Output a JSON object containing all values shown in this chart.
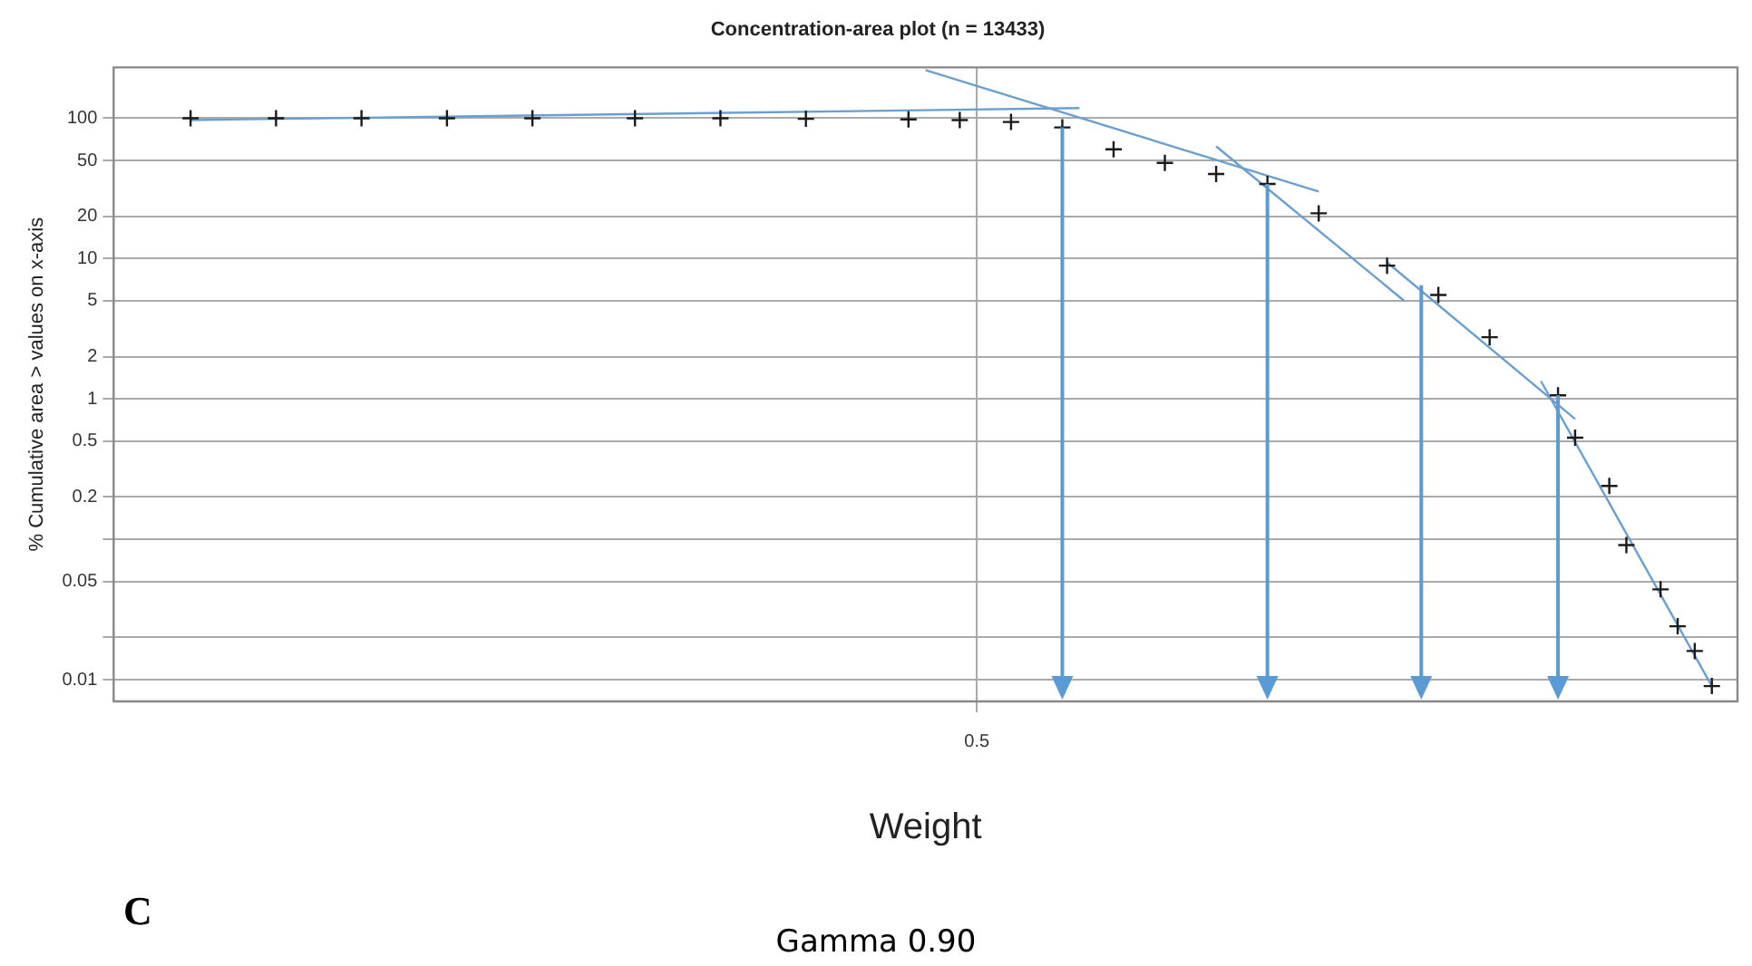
{
  "chart_data": {
    "type": "scatter",
    "title": "Concentration-area plot (n = 13433)",
    "xlabel": "Weight",
    "ylabel": "% Cumulative area > values on x-axis",
    "annotations": [
      "C",
      "Gamma 0.90"
    ],
    "log": "y",
    "grid": true,
    "marker": "cross",
    "legend": false,
    "categories": [
      null,
      null,
      null,
      null,
      null,
      null,
      null,
      null,
      null,
      null,
      null,
      null,
      null,
      null,
      null,
      null,
      null,
      null,
      null,
      null,
      null,
      null,
      null,
      null,
      null,
      null,
      null,
      null,
      null,
      null,
      null,
      null,
      null,
      null,
      null,
      null,
      null,
      null,
      null,
      null,
      null,
      null,
      null,
      null,
      null,
      null,
      null,
      null,
      null,
      null,
      "0.5",
      null,
      null,
      null,
      null,
      null,
      null,
      null,
      null,
      null,
      null,
      null,
      null,
      null,
      null,
      null,
      null,
      null,
      null,
      null,
      null,
      null,
      null,
      null,
      null,
      null,
      null,
      null,
      null,
      null,
      null,
      null,
      null,
      null,
      null,
      null,
      null,
      null,
      null,
      null,
      null,
      null,
      null,
      null,
      null
    ],
    "ylim": [
      0.007,
      230
    ],
    "yticks": [
      100,
      50,
      20,
      10,
      5,
      2,
      1,
      0.5,
      0.2,
      {
        "value": 0.1,
        "label": null
      },
      0.05,
      {
        "value": 0.02,
        "label": null
      },
      0.01
    ],
    "series": [
      {
        "color": "#1a1a1a",
        "values": [
          null,
          null,
          null,
          null,
          100,
          null,
          null,
          null,
          null,
          100,
          null,
          null,
          null,
          null,
          100,
          null,
          null,
          null,
          null,
          100,
          null,
          null,
          null,
          null,
          100,
          null,
          null,
          null,
          null,
          null,
          100,
          null,
          null,
          null,
          null,
          100,
          null,
          null,
          null,
          null,
          99,
          null,
          null,
          null,
          null,
          null,
          98,
          null,
          null,
          97,
          null,
          null,
          94,
          null,
          null,
          86,
          null,
          null,
          60,
          null,
          null,
          48,
          null,
          null,
          40,
          null,
          null,
          34,
          null,
          null,
          21,
          null,
          null,
          null,
          8.9,
          null,
          null,
          5.5,
          null,
          null,
          2.75,
          null,
          null,
          null,
          1.06,
          0.53,
          null,
          0.24,
          0.091,
          null,
          0.044,
          0.024,
          0.016,
          0.009,
          null
        ]
      },
      {
        "type": "line",
        "marker": "none",
        "color": "#6a9fd0",
        "values": [
          null,
          null,
          null,
          null,
          97,
          null,
          null,
          null,
          null,
          null,
          null,
          null,
          null,
          null,
          null,
          null,
          null,
          null,
          null,
          null,
          null,
          null,
          null,
          null,
          null,
          null,
          null,
          null,
          null,
          null,
          null,
          null,
          null,
          null,
          null,
          null,
          null,
          null,
          null,
          null,
          null,
          null,
          null,
          null,
          null,
          null,
          null,
          null,
          null,
          null,
          null,
          null,
          null,
          null,
          null,
          null,
          118,
          null,
          null,
          null,
          null,
          null,
          null,
          null,
          null,
          null,
          null,
          null,
          null,
          null,
          null,
          null,
          null,
          null,
          null,
          null,
          null,
          null,
          null,
          null,
          null,
          null,
          null,
          null,
          null,
          null,
          null,
          null,
          null,
          null,
          null,
          null,
          null,
          null,
          null
        ]
      },
      {
        "type": "line",
        "marker": "none",
        "color": "#6a9fd0",
        "values": [
          null,
          null,
          null,
          null,
          null,
          null,
          null,
          null,
          null,
          null,
          null,
          null,
          null,
          null,
          null,
          null,
          null,
          null,
          null,
          null,
          null,
          null,
          null,
          null,
          null,
          null,
          null,
          null,
          null,
          null,
          null,
          null,
          null,
          null,
          null,
          null,
          null,
          null,
          null,
          null,
          null,
          null,
          null,
          null,
          null,
          null,
          null,
          220,
          null,
          null,
          null,
          null,
          null,
          null,
          null,
          null,
          null,
          null,
          null,
          null,
          null,
          null,
          null,
          null,
          null,
          null,
          null,
          null,
          null,
          null,
          30,
          null,
          null,
          null,
          null,
          null,
          null,
          null,
          null,
          null,
          null,
          null,
          null,
          null,
          null,
          null,
          null,
          null,
          null,
          null,
          null,
          null,
          null,
          null,
          null
        ]
      },
      {
        "type": "line",
        "marker": "none",
        "color": "#6a9fd0",
        "values": [
          null,
          null,
          null,
          null,
          null,
          null,
          null,
          null,
          null,
          null,
          null,
          null,
          null,
          null,
          null,
          null,
          null,
          null,
          null,
          null,
          null,
          null,
          null,
          null,
          null,
          null,
          null,
          null,
          null,
          null,
          null,
          null,
          null,
          null,
          null,
          null,
          null,
          null,
          null,
          null,
          null,
          null,
          null,
          null,
          null,
          null,
          null,
          null,
          null,
          null,
          null,
          null,
          null,
          null,
          null,
          null,
          null,
          null,
          null,
          null,
          null,
          null,
          null,
          null,
          63,
          null,
          null,
          null,
          null,
          null,
          null,
          null,
          null,
          null,
          null,
          5,
          null,
          null,
          null,
          null,
          null,
          null,
          null,
          null,
          null,
          null,
          null,
          null,
          null,
          null,
          null,
          null,
          null,
          null,
          null
        ]
      },
      {
        "type": "line",
        "marker": "none",
        "color": "#6a9fd0",
        "values": [
          null,
          null,
          null,
          null,
          null,
          null,
          null,
          null,
          null,
          null,
          null,
          null,
          null,
          null,
          null,
          null,
          null,
          null,
          null,
          null,
          null,
          null,
          null,
          null,
          null,
          null,
          null,
          null,
          null,
          null,
          null,
          null,
          null,
          null,
          null,
          null,
          null,
          null,
          null,
          null,
          null,
          null,
          null,
          null,
          null,
          null,
          null,
          null,
          null,
          null,
          null,
          null,
          null,
          null,
          null,
          null,
          null,
          null,
          null,
          null,
          null,
          null,
          null,
          null,
          null,
          null,
          null,
          null,
          null,
          null,
          null,
          null,
          null,
          null,
          9.4,
          null,
          null,
          null,
          null,
          null,
          null,
          null,
          null,
          null,
          null,
          0.72,
          null,
          null,
          null,
          null,
          null,
          null,
          null,
          null,
          null
        ]
      },
      {
        "type": "line",
        "marker": "none",
        "color": "#6a9fd0",
        "values": [
          null,
          null,
          null,
          null,
          null,
          null,
          null,
          null,
          null,
          null,
          null,
          null,
          null,
          null,
          null,
          null,
          null,
          null,
          null,
          null,
          null,
          null,
          null,
          null,
          null,
          null,
          null,
          null,
          null,
          null,
          null,
          null,
          null,
          null,
          null,
          null,
          null,
          null,
          null,
          null,
          null,
          null,
          null,
          null,
          null,
          null,
          null,
          null,
          null,
          null,
          null,
          null,
          null,
          null,
          null,
          null,
          null,
          null,
          null,
          null,
          null,
          null,
          null,
          null,
          null,
          null,
          null,
          null,
          null,
          null,
          null,
          null,
          null,
          null,
          null,
          null,
          null,
          null,
          null,
          null,
          null,
          null,
          null,
          1.34,
          null,
          null,
          null,
          null,
          null,
          null,
          null,
          null,
          null,
          0.009,
          null
        ]
      }
    ]
  }
}
